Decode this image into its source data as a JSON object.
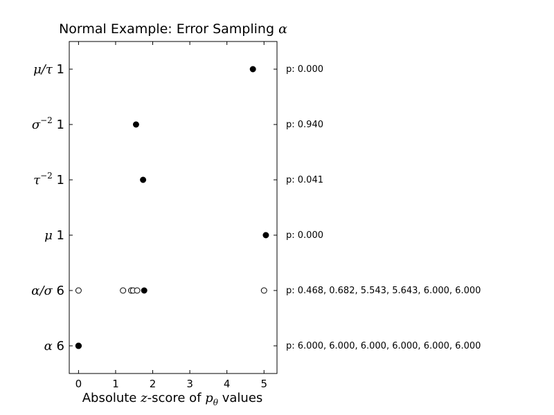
{
  "chart_data": {
    "type": "scatter",
    "title": "Normal Example: Error Sampling α",
    "title_parts": [
      "Normal Example: Error Sampling ",
      "α"
    ],
    "xlabel_parts": [
      "Absolute ",
      "z",
      "-score of ",
      "p",
      "θ",
      " values"
    ],
    "xlim": [
      -0.25,
      5.35
    ],
    "xticks": [
      0,
      1,
      2,
      3,
      4,
      5
    ],
    "grid": false,
    "rows": [
      {
        "label_parts": [
          "μ/τ",
          " 1"
        ],
        "points": [
          {
            "x": 4.7,
            "filled": true
          }
        ],
        "pvalue_label": "p: 0.000"
      },
      {
        "label_parts": [
          "σ",
          "−2",
          " 1"
        ],
        "points": [
          {
            "x": 1.55,
            "filled": true
          }
        ],
        "pvalue_label": "p: 0.940"
      },
      {
        "label_parts": [
          "τ",
          "−2",
          " 1"
        ],
        "points": [
          {
            "x": 1.74,
            "filled": true
          }
        ],
        "pvalue_label": "p: 0.041"
      },
      {
        "label_parts": [
          "μ",
          " 1"
        ],
        "points": [
          {
            "x": 5.05,
            "filled": true
          }
        ],
        "pvalue_label": "p: 0.000"
      },
      {
        "label_parts": [
          "α/σ",
          " 6"
        ],
        "points": [
          {
            "x": 0.0,
            "filled": false
          },
          {
            "x": 1.2,
            "filled": false
          },
          {
            "x": 1.42,
            "filled": false
          },
          {
            "x": 1.47,
            "filled": false
          },
          {
            "x": 1.58,
            "filled": false
          },
          {
            "x": 1.77,
            "filled": true
          },
          {
            "x": 5.0,
            "filled": false
          }
        ],
        "pvalue_label": "p: 0.468, 0.682, 5.543, 5.643, 6.000, 6.000"
      },
      {
        "label_parts": [
          "α",
          " 6"
        ],
        "points": [
          {
            "x": 0.0,
            "filled": true
          },
          {
            "x": 0.0,
            "filled": true
          },
          {
            "x": 0.0,
            "filled": true
          },
          {
            "x": 0.0,
            "filled": true
          },
          {
            "x": 0.0,
            "filled": true
          },
          {
            "x": 0.0,
            "filled": true
          }
        ],
        "pvalue_label": "p: 6.000, 6.000, 6.000, 6.000, 6.000, 6.000"
      }
    ]
  }
}
